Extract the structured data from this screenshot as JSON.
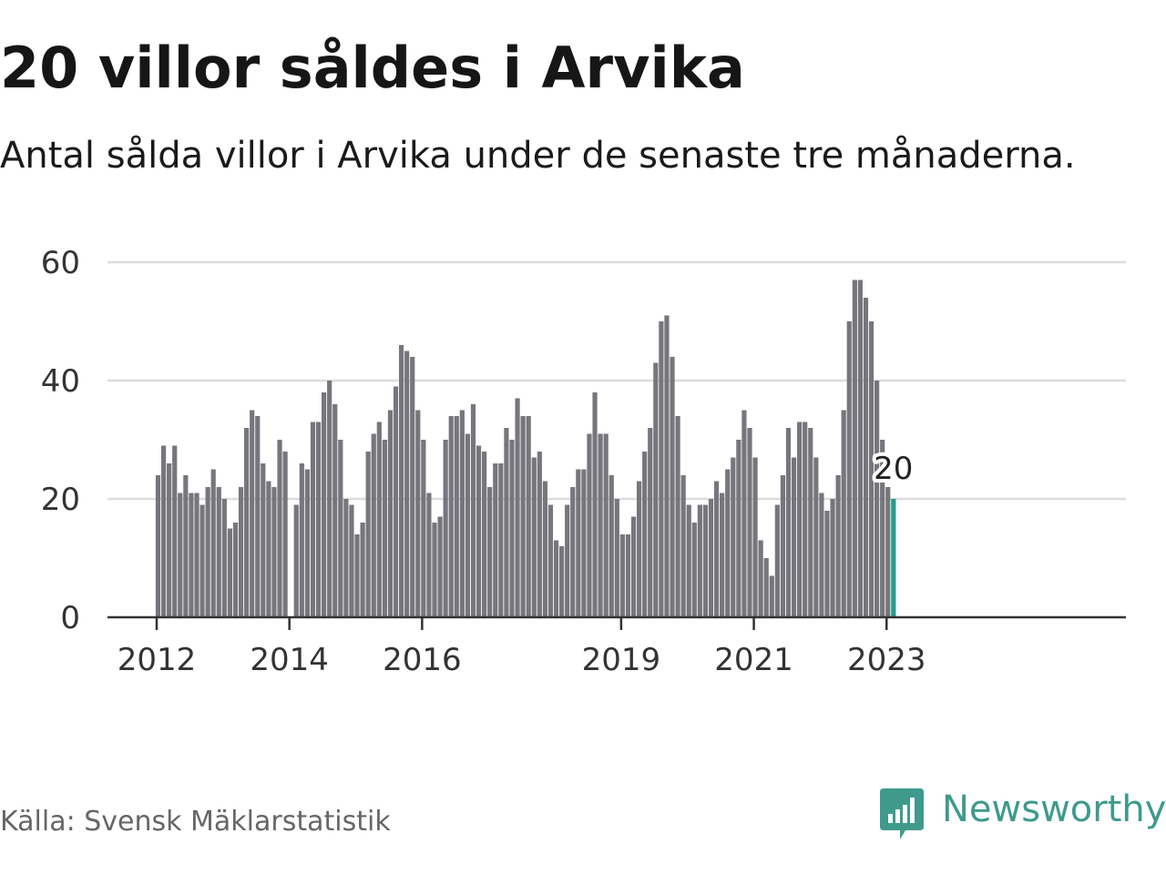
{
  "title": "20 villor såldes i Arvika",
  "subtitle": "Antal sålda villor i Arvika under de senaste tre månaderna.",
  "source": "Källa: Svensk Mäklarstatistik",
  "brand": {
    "name": "Newsworthy",
    "logo_icon": "chart-speech-bubble-icon",
    "color": "#3f9a8c"
  },
  "colors": {
    "bar": "#77767c",
    "highlight": "#1f9e8c",
    "grid": "#dddddd",
    "axis": "#333333"
  },
  "chart_data": {
    "type": "bar",
    "title": "20 villor såldes i Arvika",
    "subtitle": "Antal sålda villor i Arvika under de senaste tre månaderna.",
    "xlabel": "",
    "ylabel": "",
    "ylim": [
      0,
      60
    ],
    "yticks": [
      0,
      20,
      40,
      60
    ],
    "xticks": [
      {
        "label": "2012",
        "index": 0
      },
      {
        "label": "2014",
        "index": 24
      },
      {
        "label": "2016",
        "index": 48
      },
      {
        "label": "2019",
        "index": 84
      },
      {
        "label": "2021",
        "index": 108
      },
      {
        "label": "2023",
        "index": 132
      }
    ],
    "grid": true,
    "legend": "none",
    "x_start": "2012-01",
    "x_end": "2023-02",
    "values": [
      24,
      29,
      26,
      29,
      21,
      24,
      21,
      21,
      19,
      22,
      25,
      22,
      20,
      15,
      16,
      22,
      32,
      35,
      34,
      26,
      23,
      22,
      30,
      28,
      0,
      19,
      26,
      25,
      33,
      33,
      38,
      40,
      36,
      30,
      20,
      19,
      14,
      16,
      28,
      31,
      33,
      30,
      35,
      39,
      46,
      45,
      44,
      35,
      30,
      21,
      16,
      17,
      30,
      34,
      34,
      35,
      31,
      36,
      29,
      28,
      22,
      26,
      26,
      32,
      30,
      37,
      34,
      34,
      27,
      28,
      23,
      19,
      13,
      12,
      19,
      22,
      25,
      25,
      31,
      38,
      31,
      31,
      24,
      20,
      14,
      14,
      17,
      23,
      28,
      32,
      43,
      50,
      51,
      44,
      34,
      24,
      19,
      16,
      19,
      19,
      20,
      23,
      21,
      25,
      27,
      30,
      35,
      32,
      27,
      13,
      10,
      7,
      19,
      24,
      32,
      27,
      33,
      33,
      32,
      27,
      21,
      18,
      20,
      24,
      35,
      50,
      57,
      57,
      54,
      50,
      40,
      30,
      22,
      20
    ],
    "highlight_index": 133,
    "highlight_label": "20"
  }
}
